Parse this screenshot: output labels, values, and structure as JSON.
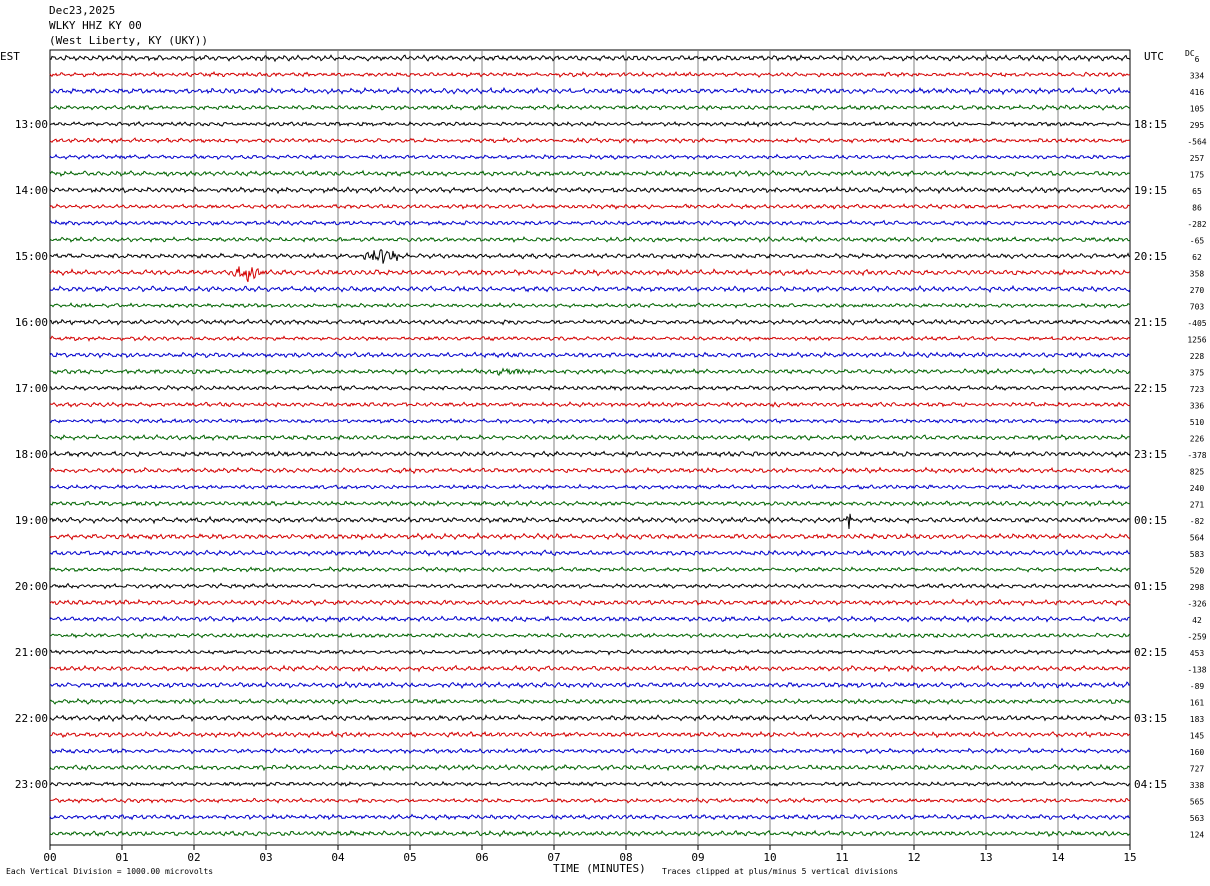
{
  "header": {
    "date": "Dec23,2025",
    "station": "WLKY HHZ KY 00",
    "location": "(West Liberty, KY (UKY))"
  },
  "left_tz": "EST",
  "right_tz": "UTC",
  "dc_label": "DC",
  "footer": {
    "xlabel": "TIME (MINUTES)",
    "scale_note": "Each Vertical Division = 1000.00 microvolts",
    "clip_note": "Traces clipped at plus/minus 5 vertical divisions"
  },
  "colors": {
    "trace_cycle": [
      "#000000",
      "#d40000",
      "#0000cc",
      "#006400"
    ],
    "grid": "#808080"
  },
  "chart_data": {
    "type": "line",
    "title": "WLKY HHZ KY 00",
    "xlabel": "TIME (MINUTES)",
    "ylabel": "",
    "xlim": [
      0,
      15
    ],
    "x_ticks": [
      "00",
      "01",
      "02",
      "03",
      "04",
      "05",
      "06",
      "07",
      "08",
      "09",
      "10",
      "11",
      "12",
      "13",
      "14",
      "15"
    ],
    "left_hour_labels": [
      "13:00",
      "14:00",
      "15:00",
      "16:00",
      "17:00",
      "18:00",
      "19:00",
      "20:00",
      "21:00",
      "22:00",
      "23:00"
    ],
    "right_hour_labels": [
      "18:15",
      "19:15",
      "20:15",
      "21:15",
      "22:15",
      "23:15",
      "00:15",
      "01:15",
      "02:15",
      "03:15",
      "04:15"
    ],
    "dc_offsets": [
      "6",
      "334",
      "416",
      "105",
      "295",
      "-564",
      "257",
      "175",
      "65",
      "86",
      "-282",
      "-65",
      "62",
      "358",
      "270",
      "703",
      "-405",
      "1256",
      "228",
      "375",
      "723",
      "336",
      "510",
      "226",
      "-378",
      "825",
      "240",
      "271",
      "-82",
      "564",
      "583",
      "520",
      "298",
      "-326",
      "42",
      "-259",
      "453",
      "-138",
      "-89",
      "161",
      "183",
      "145",
      "160",
      "727",
      "338",
      "565",
      "563",
      "124"
    ],
    "events": [
      {
        "trace": 12,
        "minute": 4.6,
        "amp": 6,
        "width": 0.35
      },
      {
        "trace": 13,
        "minute": 2.75,
        "amp": 6,
        "width": 0.3
      },
      {
        "trace": 19,
        "minute": 6.4,
        "amp": 3,
        "width": 0.45
      },
      {
        "trace": 21,
        "minute": 10.05,
        "amp": 3,
        "width": 0.05
      },
      {
        "trace": 28,
        "minute": 11.1,
        "amp": 9,
        "width": 0.05
      }
    ]
  }
}
